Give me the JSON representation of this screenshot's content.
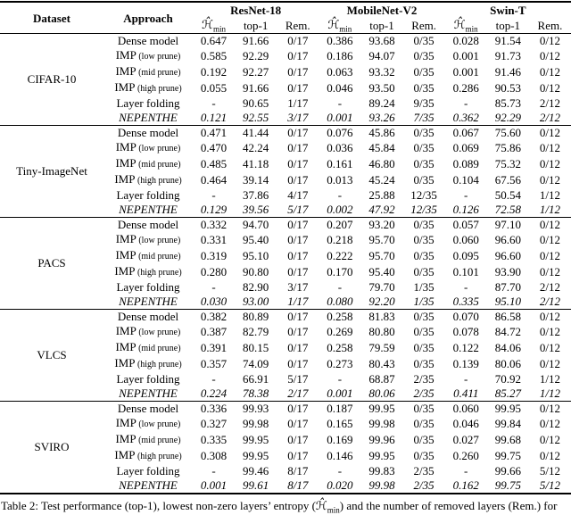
{
  "table": {
    "header": {
      "dataset": "Dataset",
      "approach": "Approach",
      "models": [
        "ResNet-18",
        "MobileNet-V2",
        "Swin-T"
      ],
      "hmin_symbol": "ℋ̂",
      "hmin_subscript": "min",
      "top1": "top-1",
      "rem": "Rem."
    },
    "groups": [
      {
        "dataset": "CIFAR-10",
        "rows": [
          {
            "approach": "Dense model",
            "note": "",
            "italic": false,
            "values": [
              "0.647",
              "91.66",
              "0/17",
              "0.386",
              "93.68",
              "0/35",
              "0.028",
              "91.54",
              "0/12"
            ]
          },
          {
            "approach": "IMP",
            "note": "(low prune)",
            "italic": false,
            "values": [
              "0.585",
              "92.29",
              "0/17",
              "0.186",
              "94.07",
              "0/35",
              "0.001",
              "91.73",
              "0/12"
            ]
          },
          {
            "approach": "IMP",
            "note": "(mid prune)",
            "italic": false,
            "values": [
              "0.192",
              "92.27",
              "0/17",
              "0.063",
              "93.32",
              "0/35",
              "0.001",
              "91.46",
              "0/12"
            ]
          },
          {
            "approach": "IMP",
            "note": "(high prune)",
            "italic": false,
            "values": [
              "0.055",
              "91.66",
              "0/17",
              "0.046",
              "93.50",
              "0/35",
              "0.286",
              "90.53",
              "0/12"
            ]
          },
          {
            "approach": "Layer folding",
            "note": "",
            "italic": false,
            "values": [
              "-",
              "90.65",
              "1/17",
              "-",
              "89.24",
              "9/35",
              "-",
              "85.73",
              "2/12"
            ]
          },
          {
            "approach": "NEPENTHE",
            "note": "",
            "italic": true,
            "values": [
              "0.121",
              "92.55",
              "3/17",
              "0.001",
              "93.26",
              "7/35",
              "0.362",
              "92.29",
              "2/12"
            ]
          }
        ]
      },
      {
        "dataset": "Tiny-ImageNet",
        "rows": [
          {
            "approach": "Dense model",
            "note": "",
            "italic": false,
            "values": [
              "0.471",
              "41.44",
              "0/17",
              "0.076",
              "45.86",
              "0/35",
              "0.067",
              "75.60",
              "0/12"
            ]
          },
          {
            "approach": "IMP",
            "note": "(low prune)",
            "italic": false,
            "values": [
              "0.470",
              "42.24",
              "0/17",
              "0.036",
              "45.84",
              "0/35",
              "0.069",
              "75.86",
              "0/12"
            ]
          },
          {
            "approach": "IMP",
            "note": "(mid prune)",
            "italic": false,
            "values": [
              "0.485",
              "41.18",
              "0/17",
              "0.161",
              "46.80",
              "0/35",
              "0.089",
              "75.32",
              "0/12"
            ]
          },
          {
            "approach": "IMP",
            "note": "(high prune)",
            "italic": false,
            "values": [
              "0.464",
              "39.14",
              "0/17",
              "0.013",
              "45.24",
              "0/35",
              "0.104",
              "67.56",
              "0/12"
            ]
          },
          {
            "approach": "Layer folding",
            "note": "",
            "italic": false,
            "values": [
              "-",
              "37.86",
              "4/17",
              "-",
              "25.88",
              "12/35",
              "-",
              "50.54",
              "1/12"
            ]
          },
          {
            "approach": "NEPENTHE",
            "note": "",
            "italic": true,
            "values": [
              "0.129",
              "39.56",
              "5/17",
              "0.002",
              "47.92",
              "12/35",
              "0.126",
              "72.58",
              "1/12"
            ]
          }
        ]
      },
      {
        "dataset": "PACS",
        "rows": [
          {
            "approach": "Dense model",
            "note": "",
            "italic": false,
            "values": [
              "0.332",
              "94.70",
              "0/17",
              "0.207",
              "93.20",
              "0/35",
              "0.057",
              "97.10",
              "0/12"
            ]
          },
          {
            "approach": "IMP",
            "note": "(low prune)",
            "italic": false,
            "values": [
              "0.331",
              "95.40",
              "0/17",
              "0.218",
              "95.70",
              "0/35",
              "0.060",
              "96.60",
              "0/12"
            ]
          },
          {
            "approach": "IMP",
            "note": "(mid prune)",
            "italic": false,
            "values": [
              "0.319",
              "95.10",
              "0/17",
              "0.222",
              "95.70",
              "0/35",
              "0.095",
              "96.60",
              "0/12"
            ]
          },
          {
            "approach": "IMP",
            "note": "(high prune)",
            "italic": false,
            "values": [
              "0.280",
              "90.80",
              "0/17",
              "0.170",
              "95.40",
              "0/35",
              "0.101",
              "93.90",
              "0/12"
            ]
          },
          {
            "approach": "Layer folding",
            "note": "",
            "italic": false,
            "values": [
              "-",
              "82.90",
              "3/17",
              "-",
              "79.70",
              "1/35",
              "-",
              "87.70",
              "2/12"
            ]
          },
          {
            "approach": "NEPENTHE",
            "note": "",
            "italic": true,
            "values": [
              "0.030",
              "93.00",
              "1/17",
              "0.080",
              "92.20",
              "1/35",
              "0.335",
              "95.10",
              "2/12"
            ]
          }
        ]
      },
      {
        "dataset": "VLCS",
        "rows": [
          {
            "approach": "Dense model",
            "note": "",
            "italic": false,
            "values": [
              "0.382",
              "80.89",
              "0/17",
              "0.258",
              "81.83",
              "0/35",
              "0.070",
              "86.58",
              "0/12"
            ]
          },
          {
            "approach": "IMP",
            "note": "(low prune)",
            "italic": false,
            "values": [
              "0.387",
              "82.79",
              "0/17",
              "0.269",
              "80.80",
              "0/35",
              "0.078",
              "84.72",
              "0/12"
            ]
          },
          {
            "approach": "IMP",
            "note": "(mid prune)",
            "italic": false,
            "values": [
              "0.391",
              "80.15",
              "0/17",
              "0.258",
              "79.59",
              "0/35",
              "0.122",
              "84.06",
              "0/12"
            ]
          },
          {
            "approach": "IMP",
            "note": "(high prune)",
            "italic": false,
            "values": [
              "0.357",
              "74.09",
              "0/17",
              "0.273",
              "80.43",
              "0/35",
              "0.139",
              "80.06",
              "0/12"
            ]
          },
          {
            "approach": "Layer folding",
            "note": "",
            "italic": false,
            "values": [
              "-",
              "66.91",
              "5/17",
              "-",
              "68.87",
              "2/35",
              "-",
              "70.92",
              "1/12"
            ]
          },
          {
            "approach": "NEPENTHE",
            "note": "",
            "italic": true,
            "values": [
              "0.224",
              "78.38",
              "2/17",
              "0.001",
              "80.06",
              "2/35",
              "0.411",
              "85.27",
              "1/12"
            ]
          }
        ]
      },
      {
        "dataset": "SVIRO",
        "rows": [
          {
            "approach": "Dense model",
            "note": "",
            "italic": false,
            "values": [
              "0.336",
              "99.93",
              "0/17",
              "0.187",
              "99.95",
              "0/35",
              "0.060",
              "99.95",
              "0/12"
            ]
          },
          {
            "approach": "IMP",
            "note": "(low prune)",
            "italic": false,
            "values": [
              "0.327",
              "99.98",
              "0/17",
              "0.165",
              "99.98",
              "0/35",
              "0.046",
              "99.84",
              "0/12"
            ]
          },
          {
            "approach": "IMP",
            "note": "(mid prune)",
            "italic": false,
            "values": [
              "0.335",
              "99.95",
              "0/17",
              "0.169",
              "99.96",
              "0/35",
              "0.027",
              "99.68",
              "0/12"
            ]
          },
          {
            "approach": "IMP",
            "note": "(high prune)",
            "italic": false,
            "values": [
              "0.308",
              "99.95",
              "0/17",
              "0.146",
              "99.95",
              "0/35",
              "0.260",
              "99.75",
              "0/12"
            ]
          },
          {
            "approach": "Layer folding",
            "note": "",
            "italic": false,
            "values": [
              "-",
              "99.46",
              "8/17",
              "-",
              "99.83",
              "2/35",
              "-",
              "99.66",
              "5/12"
            ]
          },
          {
            "approach": "NEPENTHE",
            "note": "",
            "italic": true,
            "values": [
              "0.001",
              "99.61",
              "8/17",
              "0.020",
              "99.98",
              "2/35",
              "0.162",
              "99.75",
              "5/12"
            ]
          }
        ]
      }
    ],
    "caption": {
      "prefix": "Table 2: Test performance (top-1), lowest non-zero layers’ entropy (",
      "symbol": "ℋ̂",
      "subscript": "min",
      "suffix": ") and the number of removed layers (Rem.) for"
    }
  }
}
